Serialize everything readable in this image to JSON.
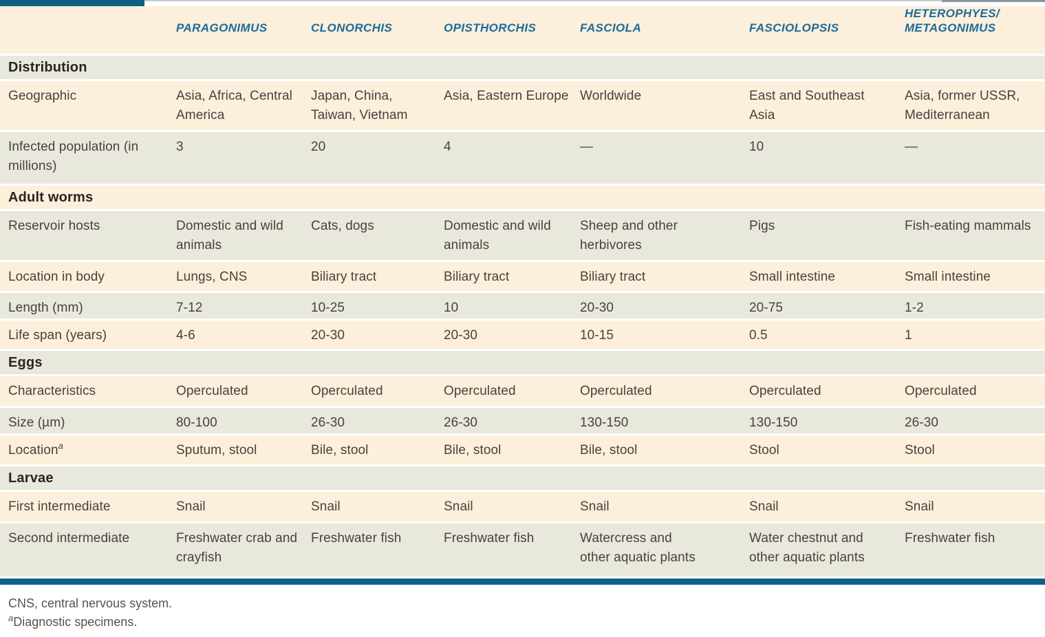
{
  "table": {
    "columns": [
      "",
      "PARAGONIMUS",
      "CLONORCHIS",
      "OPISTHORCHIS",
      "FASCIOLA",
      "FASCIOLOPSIS",
      "HETEROPHYES/\nMETAGONIMUS"
    ],
    "sections": [
      {
        "title": "Distribution",
        "rows": [
          {
            "label": "Geographic",
            "values": [
              "Asia, Africa, Central America",
              "Japan, China, Taiwan, Vietnam",
              "Asia, Eastern Europe",
              "Worldwide",
              "East and Southeast Asia",
              "Asia, former USSR, Mediterranean"
            ]
          },
          {
            "label": "Infected population (in millions)",
            "values": [
              "3",
              "20",
              "4",
              "—",
              "10",
              "—"
            ]
          }
        ]
      },
      {
        "title": "Adult worms",
        "rows": [
          {
            "label": "Reservoir hosts",
            "values": [
              "Domestic and wild animals",
              "Cats, dogs",
              "Domestic and wild animals",
              "Sheep and other herbivores",
              "Pigs",
              "Fish-eating mammals"
            ]
          },
          {
            "label": "Location in body",
            "values": [
              "Lungs, CNS",
              "Biliary tract",
              "Biliary tract",
              "Biliary tract",
              "Small intestine",
              "Small intestine"
            ]
          },
          {
            "label": "Length (mm)",
            "values": [
              "7-12",
              "10-25",
              "10",
              "20-30",
              "20-75",
              "1-2"
            ]
          },
          {
            "label": "Life span (years)",
            "values": [
              "4-6",
              "20-30",
              "20-30",
              "10-15",
              "0.5",
              "1"
            ]
          }
        ]
      },
      {
        "title": "Eggs",
        "rows": [
          {
            "label": "Characteristics",
            "values": [
              "Operculated",
              "Operculated",
              "Operculated",
              "Operculated",
              "Operculated",
              "Operculated"
            ]
          },
          {
            "label": "Size (µm)",
            "values": [
              "80-100",
              "26-30",
              "26-30",
              "130-150",
              "130-150",
              "26-30"
            ]
          },
          {
            "label": "Location",
            "label_sup": "a",
            "values": [
              "Sputum, stool",
              "Bile, stool",
              "Bile, stool",
              "Bile, stool",
              "Stool",
              "Stool"
            ]
          }
        ]
      },
      {
        "title": "Larvae",
        "rows": [
          {
            "label": "First intermediate",
            "values": [
              "Snail",
              "Snail",
              "Snail",
              "Snail",
              "Snail",
              "Snail"
            ]
          },
          {
            "label": "Second intermediate",
            "values": [
              "Freshwater crab and crayfish",
              "Freshwater fish",
              "Freshwater fish",
              "Watercress and other aquatic plants",
              "Water chestnut and other aquatic plants",
              "Freshwater fish"
            ]
          }
        ]
      }
    ]
  },
  "footnotes": {
    "cns": "CNS, central nervous system.",
    "diagnostic_sup": "a",
    "diagnostic_text": "Diagnostic specimens."
  },
  "colors": {
    "row_cream": "#fcefdc",
    "row_gray": "#e9e8dc",
    "accent_teal": "#0e6084",
    "header_blue": "#1c6b9a"
  }
}
